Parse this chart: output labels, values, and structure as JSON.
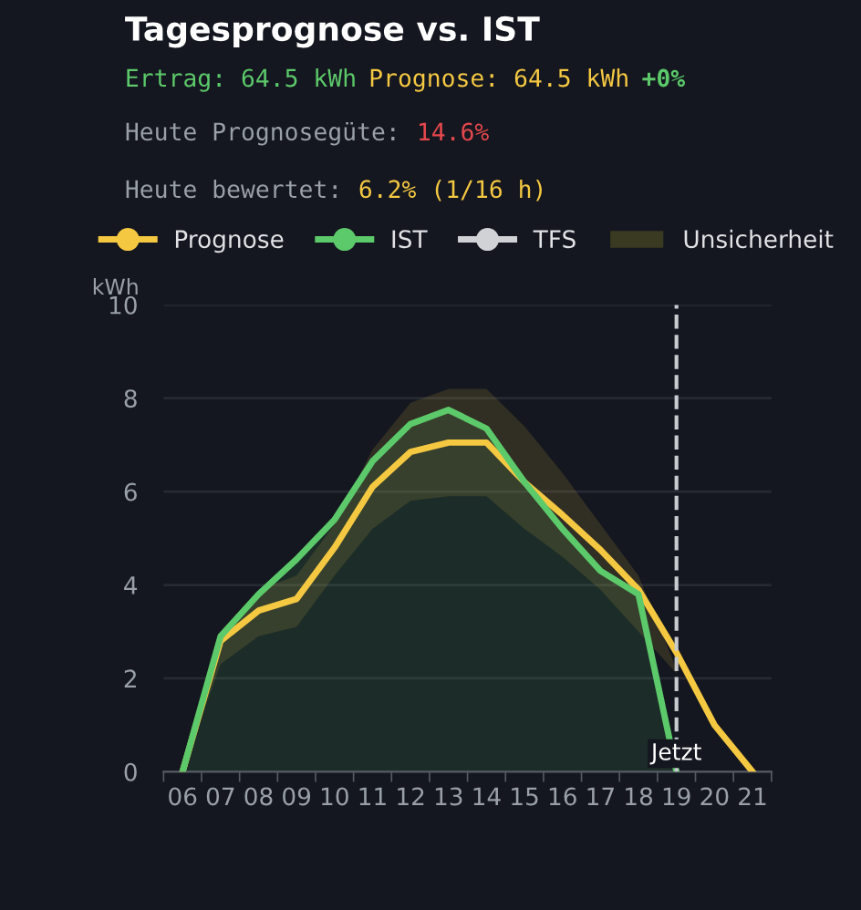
{
  "chart_data": {
    "type": "line",
    "title": "Tagesprognose vs. IST",
    "annotations": [
      "Ertrag: 64.5 kWh",
      "Prognose: 64.5 kWh",
      "+0%",
      "Heute Prognosegüte: ",
      "14.6%",
      "Heute bewertet: ",
      "6.2% (1/16 h)"
    ],
    "ylabel": "kWh",
    "categories": [
      "06",
      "07",
      "08",
      "09",
      "10",
      "11",
      "12",
      "13",
      "14",
      "15",
      "16",
      "17",
      "18",
      "19",
      "20",
      "21"
    ],
    "series": [
      {
        "name": "Prognose",
        "color": "#f5c842",
        "values": [
          0,
          2.8,
          3.45,
          3.7,
          4.8,
          6.1,
          6.85,
          7.05,
          7.05,
          6.2,
          5.5,
          4.75,
          3.9,
          2.55,
          1.0,
          0
        ],
        "lower": [
          0,
          2.3,
          2.9,
          3.1,
          4.2,
          5.2,
          5.8,
          5.9,
          5.9,
          5.2,
          4.6,
          3.9,
          3.0,
          2.1,
          null,
          null
        ],
        "upper": [
          0,
          3.0,
          3.9,
          4.2,
          5.3,
          6.9,
          7.9,
          8.2,
          8.2,
          7.4,
          6.4,
          5.3,
          4.2,
          2.2,
          null,
          null
        ]
      },
      {
        "name": "IST",
        "type": "area",
        "color": "#5cc96a",
        "values": [
          0,
          2.9,
          3.8,
          4.55,
          5.4,
          6.65,
          7.45,
          7.75,
          7.35,
          6.2,
          5.2,
          4.3,
          3.8,
          0,
          null,
          null
        ]
      },
      {
        "name": "TFS",
        "color": "#d0d2d6",
        "values": [
          null,
          null,
          null,
          null,
          null,
          null,
          null,
          null,
          null,
          null,
          null,
          null,
          null,
          null,
          null,
          null
        ]
      },
      {
        "name": "Unsicherheit",
        "type": "area",
        "color": "#3a3a22",
        "values": [
          null,
          null,
          null,
          null,
          null,
          null,
          null,
          null,
          null,
          null,
          null,
          null,
          null,
          null,
          null,
          null
        ]
      }
    ],
    "ylim": [
      0,
      10
    ],
    "yticks": [
      0,
      2,
      4,
      6,
      8,
      10
    ],
    "ref_lines": [
      {
        "axis": "x",
        "value": "19",
        "label": "Jetzt",
        "color": "#c8cbd0",
        "line_style": "dashed"
      }
    ],
    "grid": "y",
    "legend": "top",
    "marker": "none",
    "line_style": "solid"
  }
}
